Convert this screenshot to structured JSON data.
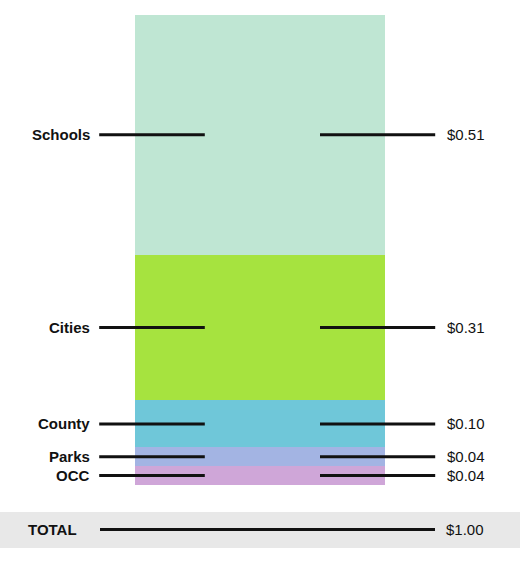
{
  "chart_data": {
    "type": "bar",
    "stacked": true,
    "data_labels": true,
    "tick_labels": false,
    "grid": false,
    "ylim": [
      0,
      1
    ],
    "series": [
      {
        "name": "Schools",
        "color": "#bfe6d3",
        "values": [
          0.51
        ],
        "value_labels": [
          "$0.51"
        ]
      },
      {
        "name": "Cities",
        "color": "#a6e33f",
        "values": [
          0.31
        ],
        "value_labels": [
          "$0.31"
        ]
      },
      {
        "name": "County",
        "color": "#6fc7d9",
        "values": [
          0.1
        ],
        "value_labels": [
          "$0.10"
        ]
      },
      {
        "name": "Parks",
        "color": "#a3b4e3",
        "values": [
          0.04
        ],
        "value_labels": [
          "$0.04"
        ]
      },
      {
        "name": "OCC",
        "color": "#cfa6d8",
        "values": [
          0.04
        ],
        "value_labels": [
          "$0.04"
        ]
      }
    ],
    "total": {
      "label": "TOTAL",
      "value": 1.0,
      "value_label": "$1.00"
    }
  }
}
